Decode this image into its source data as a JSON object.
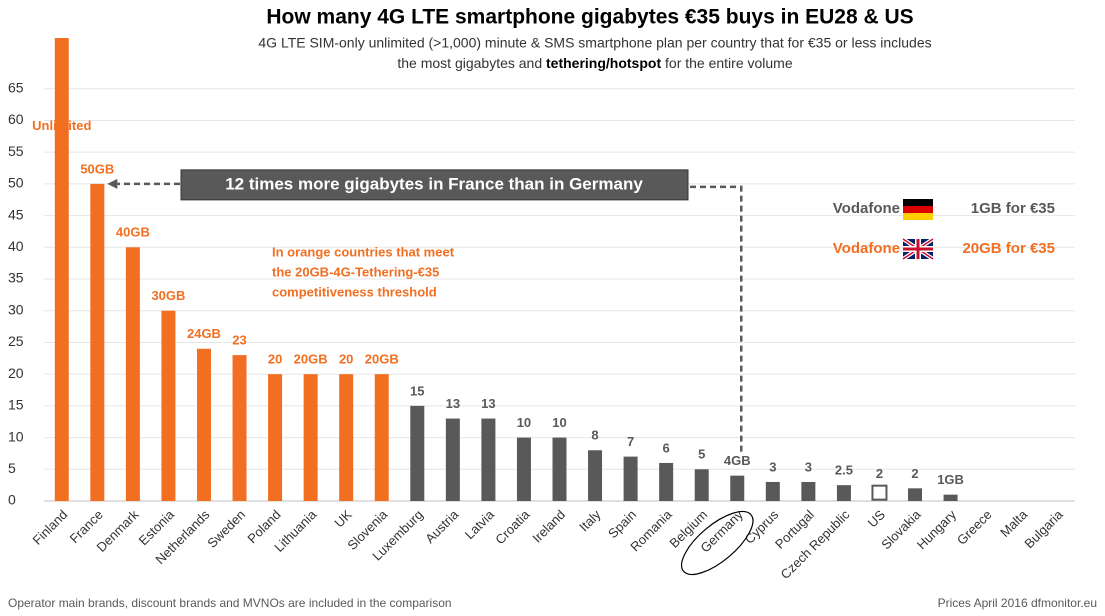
{
  "chart_data": {
    "type": "bar",
    "title": "How many 4G LTE smartphone gigabytes €35 buys in EU28 & US",
    "subtitle_line1": "4G LTE SIM-only unlimited (>1,000) minute & SMS smartphone plan per country that for €35 or less includes",
    "subtitle_line2": [
      "the most gigabytes and ",
      "tethering/hotspot",
      " for the entire volume"
    ],
    "categories": [
      "Finland",
      "France",
      "Denmark",
      "Estonia",
      "Netherlands",
      "Sweden",
      "Poland",
      "Lithuania",
      "UK",
      "Slovenia",
      "Luxemburg",
      "Austria",
      "Latvia",
      "Croatia",
      "Ireland",
      "Italy",
      "Spain",
      "Romania",
      "Belgium",
      "Germany",
      "Cyprus",
      "Portugal",
      "Czech Republic",
      "US",
      "Slovakia",
      "Hungary",
      "Greece",
      "Malta",
      "Bulgaria"
    ],
    "values": [
      73,
      50,
      40,
      30,
      24,
      23,
      20,
      20,
      20,
      20,
      15,
      13,
      13,
      10,
      10,
      8,
      7,
      6,
      5,
      4,
      3,
      3,
      2.5,
      2,
      2,
      1,
      0,
      0,
      0
    ],
    "value_labels": [
      "Unlimited",
      "50GB",
      "40GB",
      "30GB",
      "24GB",
      "23",
      "20",
      "20GB",
      "20",
      "20GB",
      "15",
      "13",
      "13",
      "10",
      "10",
      "8",
      "7",
      "6",
      "5",
      "4GB",
      "3",
      "3",
      "2.5",
      "2",
      "2",
      "1GB",
      null,
      null,
      null
    ],
    "colors": [
      "#f26f21",
      "#f26f21",
      "#f26f21",
      "#f26f21",
      "#f26f21",
      "#f26f21",
      "#f26f21",
      "#f26f21",
      "#f26f21",
      "#f26f21",
      "#595959",
      "#595959",
      "#595959",
      "#595959",
      "#595959",
      "#595959",
      "#595959",
      "#595959",
      "#595959",
      "#595959",
      "#595959",
      "#595959",
      "#595959",
      "none",
      "#595959",
      "#595959",
      "#595959",
      "#595959",
      "#595959"
    ],
    "ylim": [
      0,
      73
    ],
    "yticks": [
      0,
      5,
      10,
      15,
      20,
      25,
      30,
      35,
      40,
      45,
      50,
      55,
      60,
      65
    ],
    "grid": true,
    "callout": "12 times more gigabytes in France than in Germany",
    "note": [
      "In orange countries that meet",
      "the 20GB-4G-Tethering-€35",
      "competitiveness threshold"
    ],
    "legend": [
      {
        "operator": "Vodafone",
        "offer": "1GB for €35",
        "color": "#595959"
      },
      {
        "operator": "Vodafone",
        "offer": "20GB for €35",
        "color": "#f26f21"
      }
    ],
    "footer_left": "Operator main brands, discount brands and MVNOs are included in the comparison",
    "footer_right": "Prices April 2016 dfmonitor.eu"
  }
}
